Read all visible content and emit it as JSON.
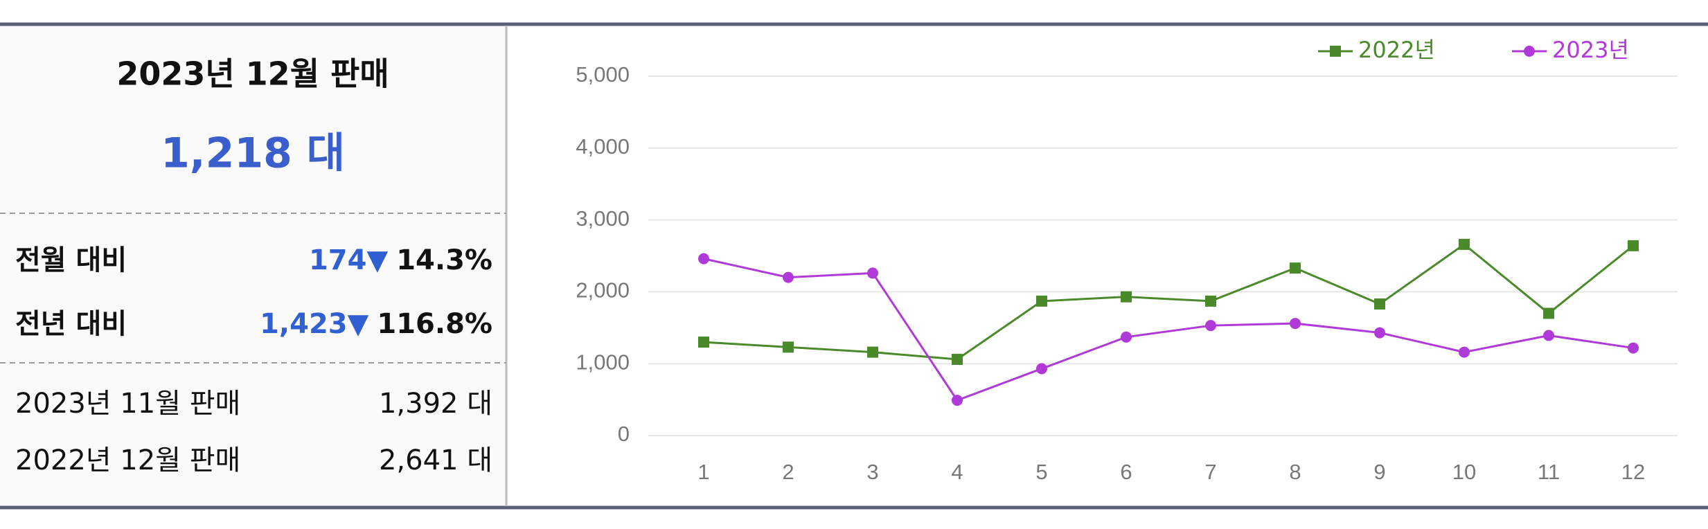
{
  "summary": {
    "title": "2023년 12월 판매",
    "total": "1,218 대",
    "compare": [
      {
        "label": "전월 대비",
        "diff": "174▼",
        "pct": "14.3%"
      },
      {
        "label": "전년 대비",
        "diff": "1,423▼",
        "pct": "116.8%"
      }
    ],
    "history": [
      {
        "label": "2023년 11월 판매",
        "value": "1,392 대"
      },
      {
        "label": "2022년 12월 판매",
        "value": "2,641 대"
      }
    ]
  },
  "chart_data": {
    "type": "line",
    "categories": [
      1,
      2,
      3,
      4,
      5,
      6,
      7,
      8,
      9,
      10,
      11,
      12
    ],
    "series": [
      {
        "name": "2022년",
        "color": "#4a8a2a",
        "marker": "square",
        "values": [
          1300,
          1230,
          1160,
          1060,
          1870,
          1930,
          1870,
          2330,
          1830,
          2660,
          1700,
          2641
        ]
      },
      {
        "name": "2023년",
        "color": "#b03ad8",
        "marker": "circle",
        "values": [
          2460,
          2200,
          2260,
          490,
          930,
          1370,
          1530,
          1560,
          1430,
          1160,
          1392,
          1218
        ]
      }
    ],
    "ylim": [
      0,
      5000
    ],
    "yticks": [
      0,
      {
        "value": 1000,
        "label": "1,000"
      },
      {
        "value": 2000,
        "label": "2,000"
      },
      {
        "value": 3000,
        "label": "3,000"
      },
      {
        "value": 4000,
        "label": "4,000"
      },
      {
        "value": 5000,
        "label": "5,000"
      }
    ],
    "grid": true,
    "legend": "top-right"
  }
}
